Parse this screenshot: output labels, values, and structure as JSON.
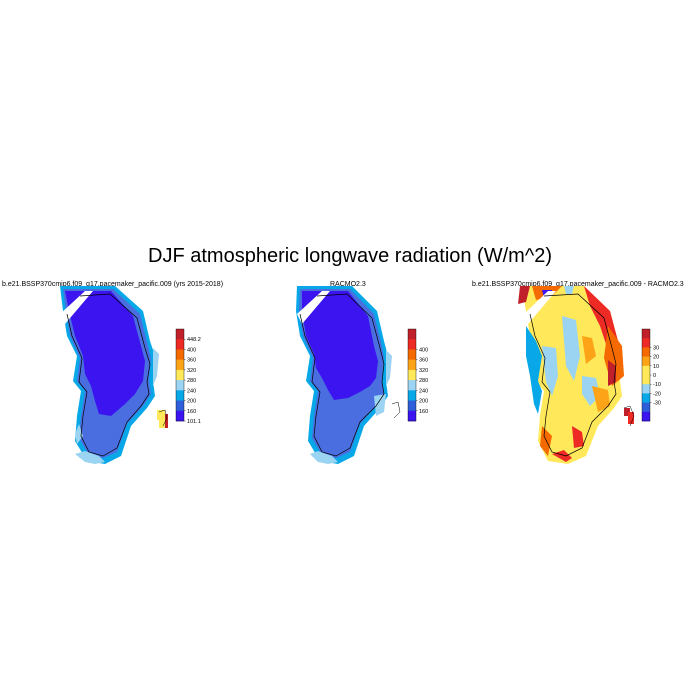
{
  "title": "DJF atmospheric longwave radiation (W/m^2)",
  "panels": [
    {
      "id": "model",
      "title": "b.e21.BSSP370cmip6.f09_g17.pacemaker_pacific.009 (yrs 2015-2018)",
      "colorbar": {
        "labels": [
          "448.2",
          "400",
          "360",
          "320",
          "280",
          "240",
          "200",
          "160",
          "101.1"
        ],
        "colors": [
          "#c0202a",
          "#ee2a24",
          "#f56a00",
          "#fda318",
          "#ffe85a",
          "#9bd4f2",
          "#08a8e8",
          "#2f5fd8",
          "#3b14f0"
        ]
      }
    },
    {
      "id": "racmo",
      "title": "RACMO2.3",
      "colorbar": {
        "labels": [
          "400",
          "360",
          "320",
          "280",
          "240",
          "200",
          "160"
        ],
        "colors": [
          "#c0202a",
          "#ee2a24",
          "#f56a00",
          "#fda318",
          "#ffe85a",
          "#9bd4f2",
          "#08a8e8",
          "#2f5fd8",
          "#3b14f0"
        ]
      }
    },
    {
      "id": "difference",
      "title": "b.e21.BSSP370cmip6.f09_g17.pacemaker_pacific.009 - RACMO2.3",
      "colorbar": {
        "labels": [
          "30",
          "20",
          "10",
          "0",
          "-10",
          "-20",
          "-30"
        ],
        "colors": [
          "#c0202a",
          "#ee2a24",
          "#f56a00",
          "#fda318",
          "#ffe85a",
          "#ffe85a",
          "#9bd4f2",
          "#08a8e8",
          "#2f5fd8",
          "#3b14f0"
        ]
      }
    }
  ]
}
